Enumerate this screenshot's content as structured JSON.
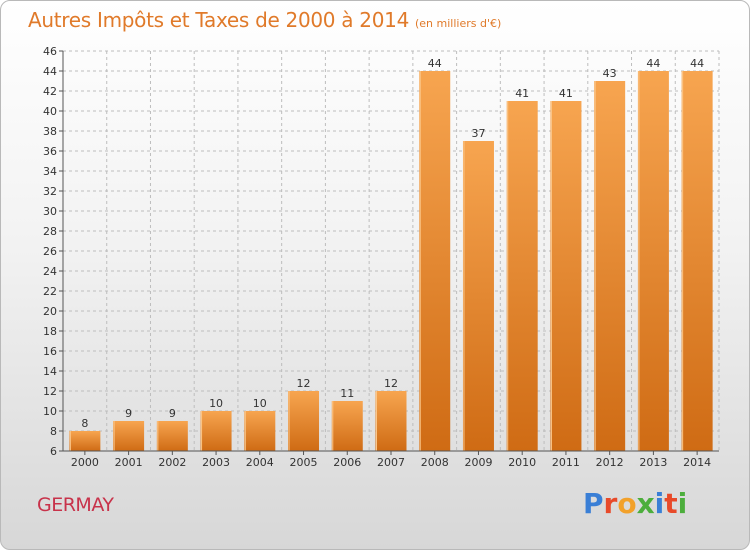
{
  "header": {
    "title": "Autres Impôts et Taxes de 2000 à 2014",
    "unit": "(en milliers d'€)"
  },
  "footer": {
    "location": "GERMAY",
    "logo": "Proxiti",
    "logo_colors": [
      "#3a7fd6",
      "#e84a2a",
      "#f2a12a",
      "#4cae3c",
      "#3a7fd6",
      "#e84a2a",
      "#4cae3c"
    ]
  },
  "colors": {
    "bar_top": "#f7a550",
    "bar_bottom": "#cf6b14",
    "grid": "#bdbdbd",
    "axis": "#555555"
  },
  "chart_data": {
    "type": "bar",
    "title": "Autres Impôts et Taxes de 2000 à 2014",
    "subtitle": "(en milliers d'€)",
    "xlabel": "",
    "ylabel": "",
    "categories": [
      "2000",
      "2001",
      "2002",
      "2003",
      "2004",
      "2005",
      "2006",
      "2007",
      "2008",
      "2009",
      "2010",
      "2011",
      "2012",
      "2013",
      "2014"
    ],
    "values": [
      8,
      9,
      9,
      10,
      10,
      12,
      11,
      12,
      44,
      37,
      41,
      41,
      43,
      44,
      44
    ],
    "ylim": [
      6,
      46
    ],
    "ytick_step": 2,
    "grid": true,
    "data_labels": true
  }
}
